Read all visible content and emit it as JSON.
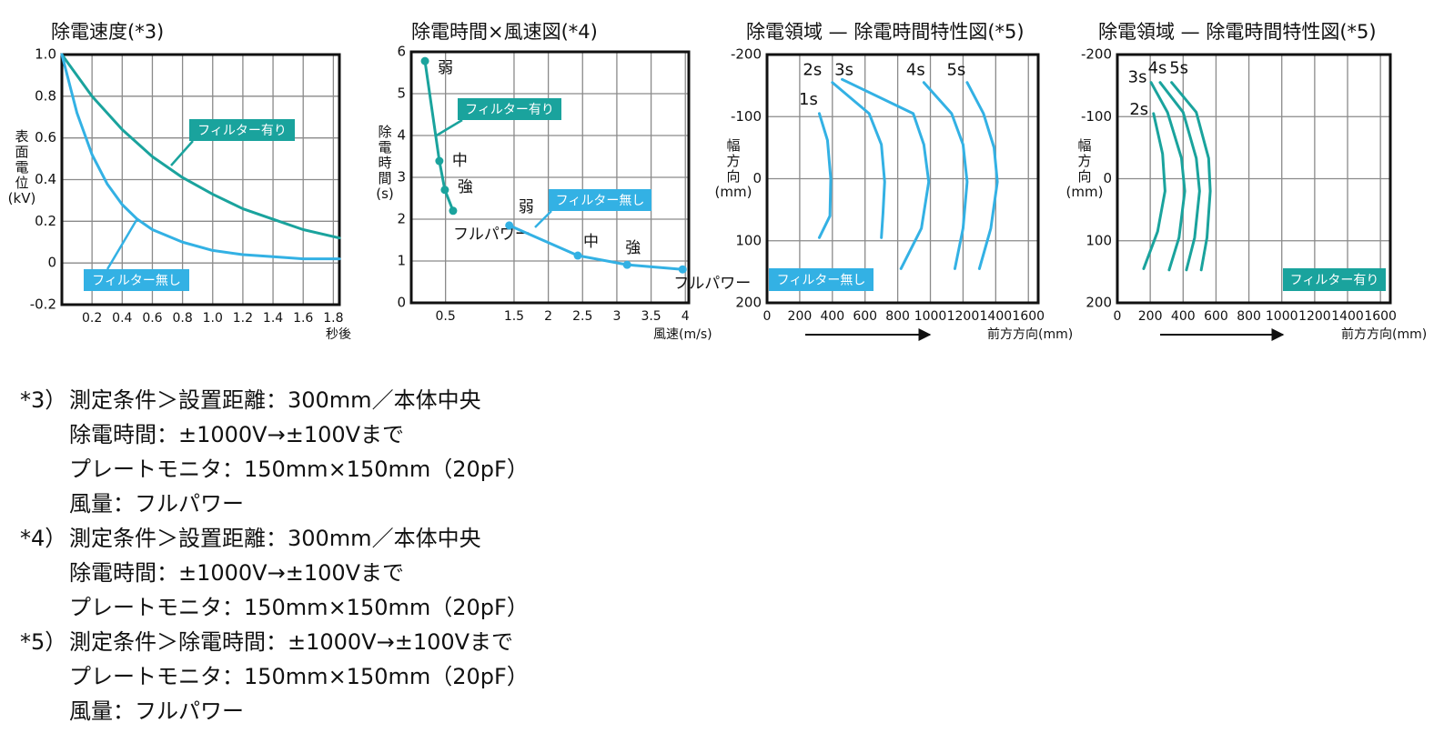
{
  "chart_data": [
    {
      "type": "line",
      "title": "除電速度(*3)",
      "y_label": "表面電位(kV)",
      "x_label": "秒後",
      "xlim": [
        0,
        1.84
      ],
      "ylim": [
        -0.2,
        1
      ],
      "xticks": [
        0.2,
        0.4,
        0.6,
        0.8,
        {
          "value": 1,
          "label": "1.0"
        },
        1.2,
        1.4,
        1.6,
        1.8
      ],
      "yticks": [
        {
          "value": 1,
          "label": "1.0"
        },
        0.8,
        0.6,
        0.4,
        0.2,
        0,
        -0.2
      ],
      "grid": true,
      "series": [
        {
          "name": "フィルター有り",
          "color": "#1aa39d",
          "x": [
            0,
            0.2,
            0.4,
            0.6,
            0.8,
            1,
            1.2,
            1.4,
            1.6,
            1.84
          ],
          "values": [
            1,
            0.8,
            0.64,
            0.51,
            0.41,
            0.33,
            0.26,
            0.21,
            0.16,
            0.12
          ]
        },
        {
          "name": "フィルター無し",
          "color": "#33b1e4",
          "x": [
            0,
            0.1,
            0.2,
            0.3,
            0.4,
            0.5,
            0.6,
            0.8,
            1,
            1.2,
            1.4,
            1.6,
            1.84
          ],
          "values": [
            1,
            0.72,
            0.52,
            0.38,
            0.28,
            0.21,
            0.16,
            0.1,
            0.06,
            0.04,
            0.03,
            0.02,
            0.02
          ]
        }
      ]
    },
    {
      "type": "line",
      "title": "除電時間×風速図(*4)",
      "y_label": "除電時間(s)",
      "x_label": "風速(m/s)",
      "xlim": [
        0,
        4.05
      ],
      "ylim": [
        0,
        6
      ],
      "xticks": [
        0.5,
        1.5,
        2,
        2.5,
        3,
        3.5,
        4
      ],
      "yticks": [
        0,
        1,
        2,
        3,
        4,
        5,
        6
      ],
      "grid": true,
      "markers": true,
      "series": [
        {
          "name": "フィルター有り",
          "color": "#1aa39d",
          "x": [
            0.2,
            0.41,
            0.49,
            0.61
          ],
          "values": [
            5.78,
            3.39,
            2.7,
            2.2
          ],
          "point_labels": [
            "弱",
            "中",
            "強",
            "フルパワー"
          ]
        },
        {
          "name": "フィルター無し",
          "color": "#33b1e4",
          "x": [
            1.43,
            2.43,
            3.15,
            3.96
          ],
          "values": [
            1.85,
            1.13,
            0.91,
            0.8
          ],
          "point_labels": [
            "弱",
            "中",
            "強",
            "フルパワー"
          ]
        }
      ]
    },
    {
      "type": "line",
      "title": "除電領域 — 除電時間特性図(*5)",
      "y_label": "幅方向(mm)",
      "x_label": "前方方向(mm)",
      "xlim": [
        0,
        1660
      ],
      "ylim": [
        -200,
        200
      ],
      "y_reversed": true,
      "xticks": [
        0,
        200,
        400,
        600,
        800,
        1000,
        1200,
        1400,
        1600
      ],
      "yticks": [
        -200,
        -100,
        0,
        100,
        200
      ],
      "grid": true,
      "annotation": "フィルター無し",
      "annotation_color": "#33b1e4",
      "series": [
        {
          "name": "1s",
          "color": "#33b1e4",
          "x": [
            320,
            370,
            390,
            385,
            320
          ],
          "values": [
            -105,
            -62,
            0,
            60,
            95
          ]
        },
        {
          "name": "2s",
          "color": "#33b1e4",
          "x": [
            400,
            625,
            700,
            720,
            710,
            700
          ],
          "values": [
            -155,
            -105,
            -55,
            5,
            55,
            95
          ]
        },
        {
          "name": "3s",
          "color": "#33b1e4",
          "x": [
            460,
            895,
            960,
            990,
            945,
            820
          ],
          "values": [
            -160,
            -105,
            -55,
            5,
            80,
            145
          ]
        },
        {
          "name": "4s",
          "color": "#33b1e4",
          "x": [
            960,
            1130,
            1200,
            1225,
            1200,
            1150
          ],
          "values": [
            -155,
            -105,
            -55,
            5,
            80,
            145
          ]
        },
        {
          "name": "5s",
          "color": "#33b1e4",
          "x": [
            1225,
            1325,
            1390,
            1410,
            1370,
            1300
          ],
          "values": [
            -155,
            -105,
            -50,
            5,
            80,
            145
          ]
        }
      ]
    },
    {
      "type": "line",
      "title": "除電領域 — 除電時間特性図(*5)",
      "y_label": "幅方向(mm)",
      "x_label": "前方方向(mm)",
      "xlim": [
        0,
        1660
      ],
      "ylim": [
        -200,
        200
      ],
      "y_reversed": true,
      "xticks": [
        0,
        200,
        400,
        600,
        800,
        1000,
        1200,
        1400,
        1600
      ],
      "yticks": [
        -200,
        -100,
        0,
        100,
        200
      ],
      "grid": true,
      "annotation": "フィルター有り",
      "annotation_color": "#1aa39d",
      "series": [
        {
          "name": "2s",
          "color": "#1aa39d",
          "x": [
            220,
            275,
            290,
            245,
            160
          ],
          "values": [
            -105,
            -40,
            20,
            85,
            145
          ]
        },
        {
          "name": "3s",
          "color": "#1aa39d",
          "x": [
            205,
            305,
            390,
            410,
            375,
            315
          ],
          "values": [
            -155,
            -107,
            -33,
            20,
            95,
            147
          ]
        },
        {
          "name": "4s",
          "color": "#1aa39d",
          "x": [
            260,
            400,
            480,
            500,
            470,
            420
          ],
          "values": [
            -155,
            -107,
            -33,
            20,
            95,
            147
          ]
        },
        {
          "name": "5s",
          "color": "#1aa39d",
          "x": [
            330,
            480,
            555,
            565,
            545,
            510
          ],
          "values": [
            -155,
            -107,
            -33,
            20,
            95,
            147
          ]
        }
      ]
    }
  ],
  "notes": [
    {
      "marker": "*3）",
      "lines": [
        "測定条件＞設置距離：300mm／本体中央",
        "除電時間：±1000V→±100Vまで",
        "プレートモニタ：150mm×150mm（20pF）",
        "風量：フルパワー"
      ]
    },
    {
      "marker": "*4）",
      "lines": [
        "測定条件＞設置距離：300mm／本体中央",
        "除電時間：±1000V→±100Vまで",
        "プレートモニタ：150mm×150mm（20pF）"
      ]
    },
    {
      "marker": "*5）",
      "lines": [
        "測定条件＞除電時間：±1000V→±100Vまで",
        "プレートモニタ：150mm×150mm（20pF）",
        "風量：フルパワー"
      ]
    }
  ]
}
